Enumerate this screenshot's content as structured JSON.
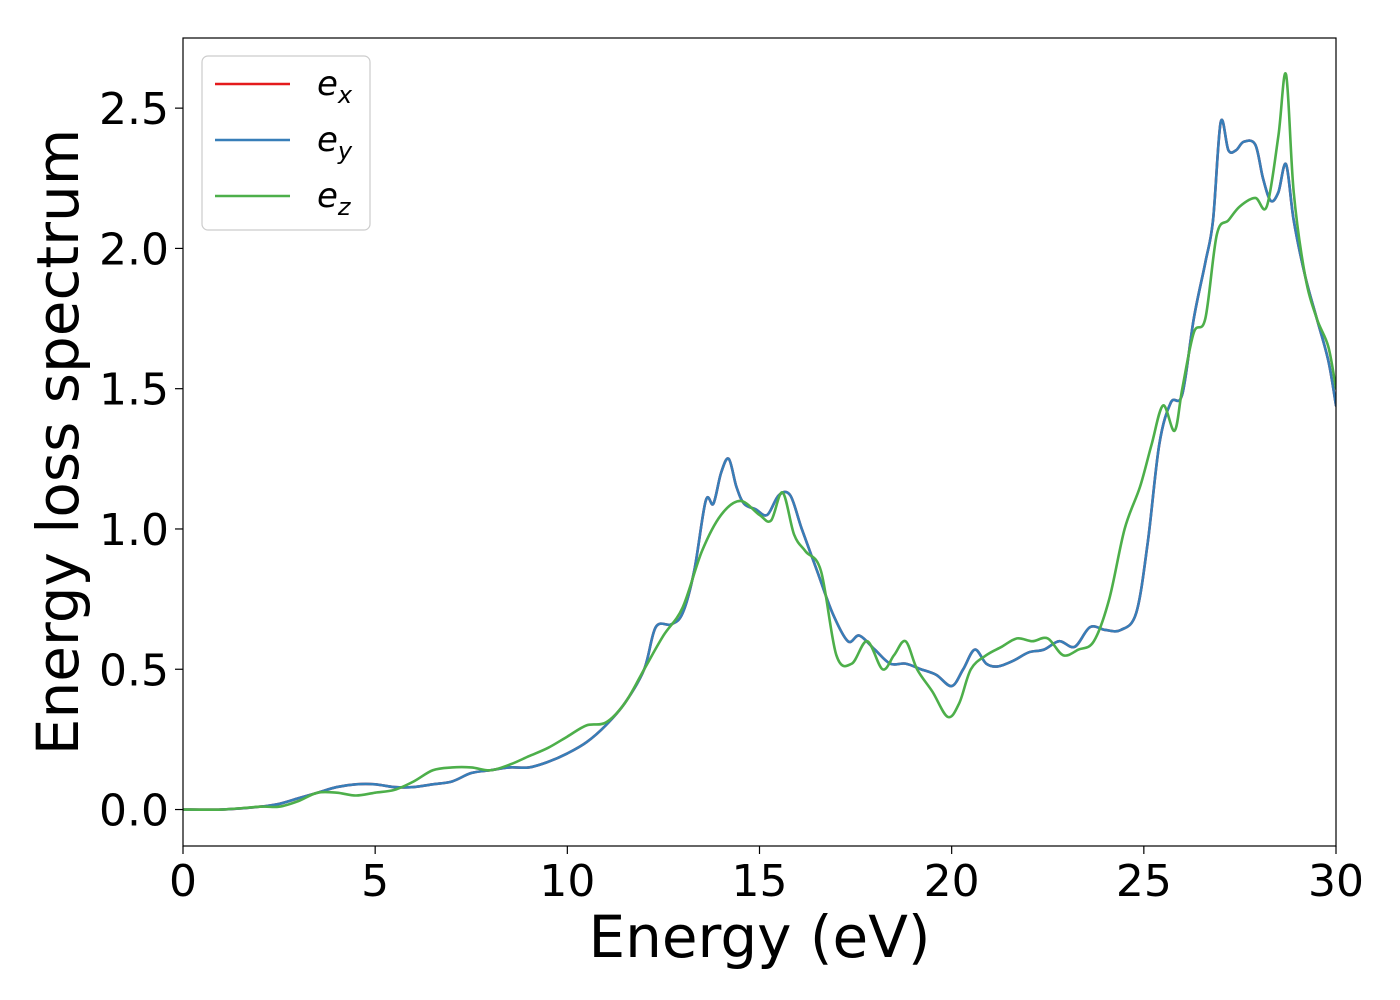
{
  "chart_data": {
    "type": "line",
    "xlabel": "Energy (eV)",
    "ylabel": "Energy loss spectrum",
    "xlim": [
      0,
      30
    ],
    "ylim": [
      -0.13,
      2.75
    ],
    "xticks": [
      0,
      5,
      10,
      15,
      20,
      25,
      30
    ],
    "yticks": [
      0.0,
      0.5,
      1.0,
      1.5,
      2.0,
      2.5
    ],
    "xtick_labels": [
      "0",
      "5",
      "10",
      "15",
      "20",
      "25",
      "30"
    ],
    "ytick_labels": [
      "0.0",
      "0.5",
      "1.0",
      "1.5",
      "2.0",
      "2.5"
    ],
    "grid": false,
    "legend_position": "upper-left",
    "series": [
      {
        "name": "e_x",
        "label_main": "e",
        "label_sub": "x",
        "color": "#e41a1c",
        "x": [
          0,
          1,
          2,
          2.5,
          3,
          3.5,
          4,
          4.5,
          5,
          5.5,
          6,
          6.5,
          7,
          7.5,
          8,
          8.5,
          9,
          9.5,
          10,
          10.5,
          11,
          11.5,
          12,
          12.3,
          12.7,
          13,
          13.3,
          13.6,
          13.8,
          14,
          14.2,
          14.4,
          14.6,
          14.9,
          15.2,
          15.5,
          15.8,
          16.1,
          16.5,
          16.9,
          17.3,
          17.6,
          18,
          18.4,
          18.8,
          19.2,
          19.6,
          20,
          20.3,
          20.6,
          20.9,
          21.2,
          21.6,
          22,
          22.4,
          22.8,
          23.2,
          23.6,
          24,
          24.4,
          24.8,
          25.1,
          25.4,
          25.7,
          26,
          26.3,
          26.6,
          26.8,
          27,
          27.2,
          27.4,
          27.6,
          27.9,
          28.1,
          28.3,
          28.5,
          28.7,
          28.9,
          29.2,
          29.5,
          29.8,
          30
        ],
        "y": [
          0.0,
          0.0,
          0.01,
          0.02,
          0.04,
          0.06,
          0.08,
          0.09,
          0.09,
          0.08,
          0.08,
          0.09,
          0.1,
          0.13,
          0.14,
          0.15,
          0.15,
          0.17,
          0.2,
          0.24,
          0.3,
          0.38,
          0.5,
          0.65,
          0.66,
          0.7,
          0.85,
          1.1,
          1.09,
          1.2,
          1.25,
          1.15,
          1.09,
          1.07,
          1.05,
          1.12,
          1.12,
          1.0,
          0.85,
          0.7,
          0.6,
          0.62,
          0.57,
          0.52,
          0.52,
          0.5,
          0.48,
          0.44,
          0.5,
          0.57,
          0.52,
          0.51,
          0.53,
          0.56,
          0.57,
          0.6,
          0.58,
          0.65,
          0.64,
          0.64,
          0.7,
          0.95,
          1.3,
          1.45,
          1.48,
          1.75,
          1.95,
          2.1,
          2.45,
          2.35,
          2.35,
          2.38,
          2.37,
          2.25,
          2.17,
          2.2,
          2.3,
          2.1,
          1.9,
          1.75,
          1.6,
          1.44
        ]
      },
      {
        "name": "e_y",
        "label_main": "e",
        "label_sub": "y",
        "color": "#377eb8",
        "x": [
          0,
          1,
          2,
          2.5,
          3,
          3.5,
          4,
          4.5,
          5,
          5.5,
          6,
          6.5,
          7,
          7.5,
          8,
          8.5,
          9,
          9.5,
          10,
          10.5,
          11,
          11.5,
          12,
          12.3,
          12.7,
          13,
          13.3,
          13.6,
          13.8,
          14,
          14.2,
          14.4,
          14.6,
          14.9,
          15.2,
          15.5,
          15.8,
          16.1,
          16.5,
          16.9,
          17.3,
          17.6,
          18,
          18.4,
          18.8,
          19.2,
          19.6,
          20,
          20.3,
          20.6,
          20.9,
          21.2,
          21.6,
          22,
          22.4,
          22.8,
          23.2,
          23.6,
          24,
          24.4,
          24.8,
          25.1,
          25.4,
          25.7,
          26,
          26.3,
          26.6,
          26.8,
          27,
          27.2,
          27.4,
          27.6,
          27.9,
          28.1,
          28.3,
          28.5,
          28.7,
          28.9,
          29.2,
          29.5,
          29.8,
          30
        ],
        "y": [
          0.0,
          0.0,
          0.01,
          0.02,
          0.04,
          0.06,
          0.08,
          0.09,
          0.09,
          0.08,
          0.08,
          0.09,
          0.1,
          0.13,
          0.14,
          0.15,
          0.15,
          0.17,
          0.2,
          0.24,
          0.3,
          0.38,
          0.5,
          0.65,
          0.66,
          0.7,
          0.85,
          1.1,
          1.09,
          1.2,
          1.25,
          1.15,
          1.09,
          1.07,
          1.05,
          1.12,
          1.12,
          1.0,
          0.85,
          0.7,
          0.6,
          0.62,
          0.57,
          0.52,
          0.52,
          0.5,
          0.48,
          0.44,
          0.5,
          0.57,
          0.52,
          0.51,
          0.53,
          0.56,
          0.57,
          0.6,
          0.58,
          0.65,
          0.64,
          0.64,
          0.7,
          0.95,
          1.3,
          1.45,
          1.48,
          1.75,
          1.95,
          2.1,
          2.45,
          2.35,
          2.35,
          2.38,
          2.37,
          2.25,
          2.17,
          2.2,
          2.3,
          2.1,
          1.9,
          1.75,
          1.6,
          1.44
        ]
      },
      {
        "name": "e_z",
        "label_main": "e",
        "label_sub": "z",
        "color": "#4daf4a",
        "x": [
          0,
          1,
          2,
          2.5,
          3,
          3.5,
          4,
          4.5,
          5,
          5.5,
          6,
          6.5,
          7,
          7.5,
          8,
          8.5,
          9,
          9.5,
          10,
          10.5,
          11,
          11.5,
          12,
          12.5,
          13,
          13.5,
          14,
          14.5,
          15,
          15.3,
          15.6,
          15.9,
          16.2,
          16.6,
          17,
          17.4,
          17.8,
          18.2,
          18.5,
          18.8,
          19.1,
          19.5,
          19.9,
          20.2,
          20.5,
          20.9,
          21.3,
          21.7,
          22.1,
          22.5,
          22.9,
          23.3,
          23.7,
          24.1,
          24.5,
          24.9,
          25.2,
          25.5,
          25.8,
          26,
          26.3,
          26.6,
          26.9,
          27.2,
          27.5,
          27.9,
          28.2,
          28.5,
          28.7,
          28.9,
          29.2,
          29.5,
          29.8,
          30
        ],
        "y": [
          0.0,
          0.0,
          0.01,
          0.01,
          0.03,
          0.06,
          0.06,
          0.05,
          0.06,
          0.07,
          0.1,
          0.14,
          0.15,
          0.15,
          0.14,
          0.16,
          0.19,
          0.22,
          0.26,
          0.3,
          0.31,
          0.38,
          0.5,
          0.62,
          0.72,
          0.92,
          1.05,
          1.1,
          1.05,
          1.03,
          1.13,
          0.98,
          0.92,
          0.85,
          0.55,
          0.52,
          0.6,
          0.5,
          0.55,
          0.6,
          0.5,
          0.42,
          0.33,
          0.38,
          0.5,
          0.55,
          0.58,
          0.61,
          0.6,
          0.61,
          0.55,
          0.57,
          0.6,
          0.75,
          1.0,
          1.15,
          1.3,
          1.44,
          1.35,
          1.5,
          1.7,
          1.75,
          2.05,
          2.1,
          2.15,
          2.18,
          2.15,
          2.4,
          2.62,
          2.2,
          1.9,
          1.75,
          1.65,
          1.5
        ]
      }
    ]
  }
}
